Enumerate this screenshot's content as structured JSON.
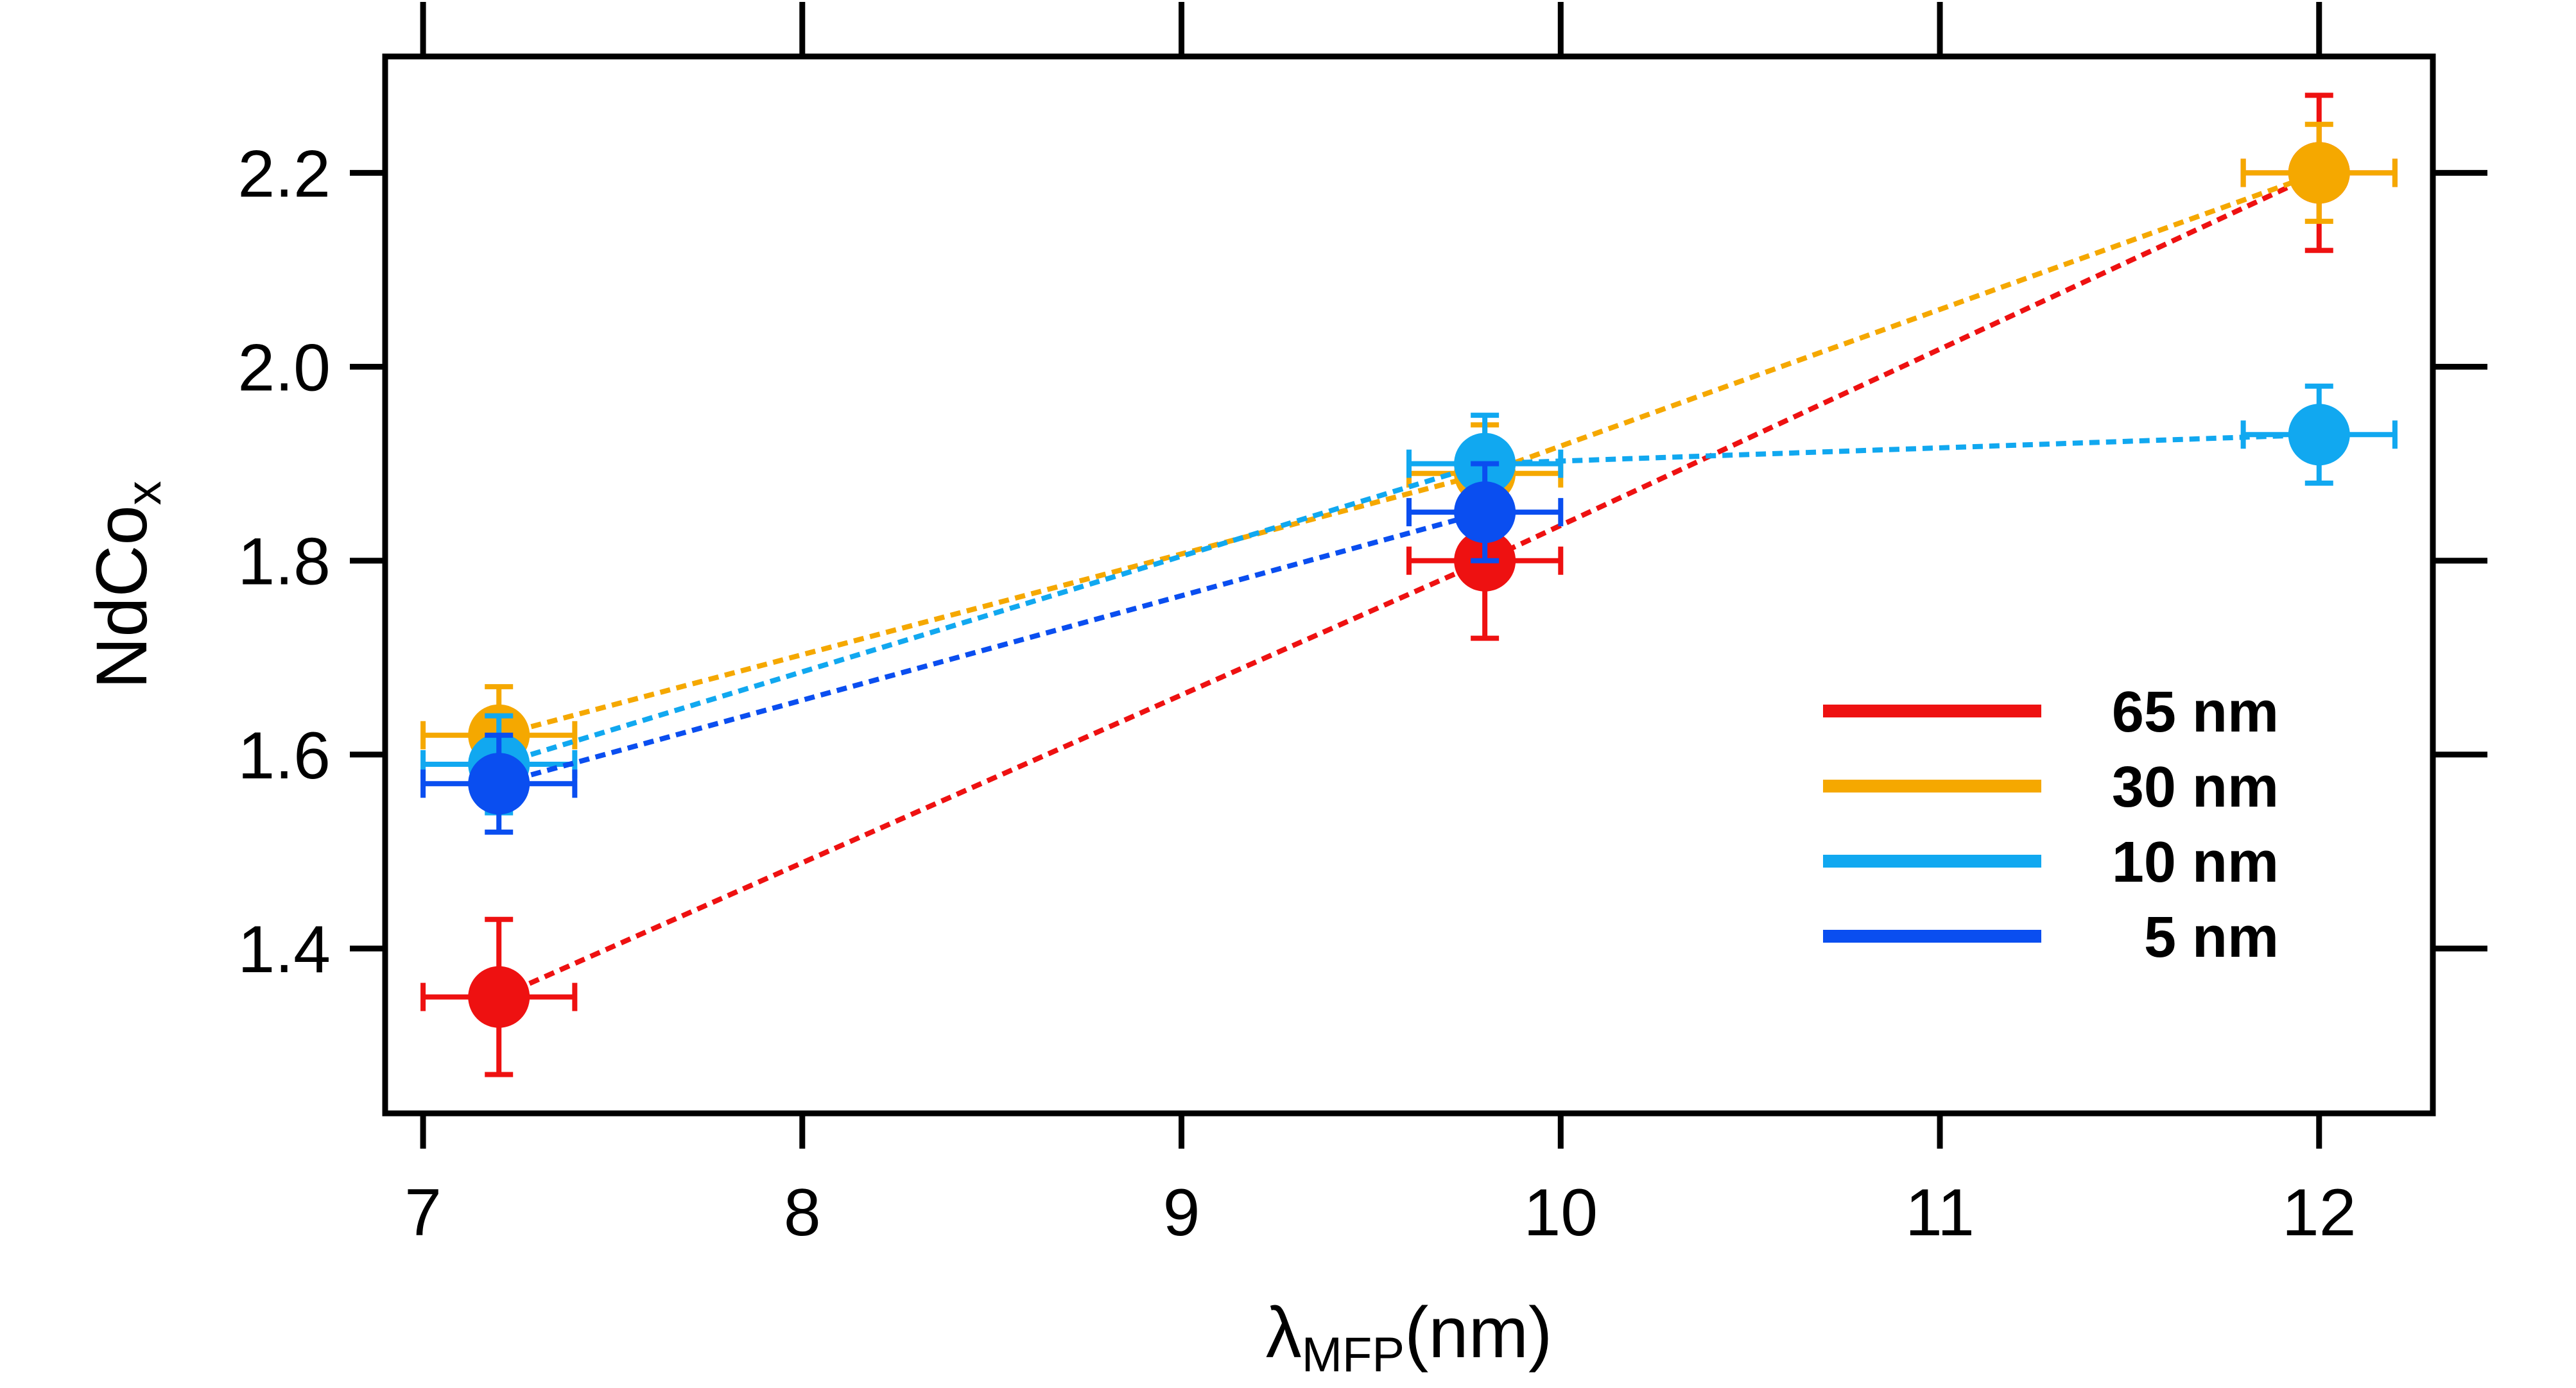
{
  "chart_data": {
    "type": "scatter",
    "title": "",
    "xlabel": {
      "main": "λ",
      "sub": "MFP",
      "suffix": "(nm)"
    },
    "ylabel": {
      "main": "NdCo",
      "sub": "x"
    },
    "xlim": [
      6.9,
      12.3
    ],
    "ylim": [
      1.23,
      2.32
    ],
    "x_ticks": [
      7,
      8,
      9,
      10,
      11,
      12
    ],
    "x_tick_labels": [
      "7",
      "8",
      "9",
      "10",
      "11",
      "12"
    ],
    "y_ticks": [
      1.4,
      1.6,
      1.8,
      2.0,
      2.2
    ],
    "y_tick_labels": [
      "1.4",
      "1.6",
      "1.8",
      "2.0",
      "2.2"
    ],
    "grid": false,
    "legend_position": "lower-right",
    "series": [
      {
        "name": "65 nm",
        "color": "#EE1111",
        "points": [
          {
            "x": 7.2,
            "y": 1.35,
            "xerr": 0.2,
            "yerr": 0.08
          },
          {
            "x": 9.8,
            "y": 1.8,
            "xerr": 0.2,
            "yerr": 0.08
          },
          {
            "x": 12.0,
            "y": 2.2,
            "xerr": 0.2,
            "yerr": 0.08
          }
        ]
      },
      {
        "name": "30 nm",
        "color": "#F5A800",
        "points": [
          {
            "x": 7.2,
            "y": 1.62,
            "xerr": 0.2,
            "yerr": 0.05
          },
          {
            "x": 9.8,
            "y": 1.89,
            "xerr": 0.2,
            "yerr": 0.05
          },
          {
            "x": 12.0,
            "y": 2.2,
            "xerr": 0.2,
            "yerr": 0.05
          }
        ]
      },
      {
        "name": "10 nm",
        "color": "#11A8F0",
        "points": [
          {
            "x": 7.2,
            "y": 1.59,
            "xerr": 0.2,
            "yerr": 0.05
          },
          {
            "x": 9.8,
            "y": 1.9,
            "xerr": 0.2,
            "yerr": 0.05
          },
          {
            "x": 12.0,
            "y": 1.93,
            "xerr": 0.2,
            "yerr": 0.05
          }
        ]
      },
      {
        "name": " 5 nm",
        "color": "#0A4EF0",
        "points": [
          {
            "x": 7.2,
            "y": 1.57,
            "xerr": 0.2,
            "yerr": 0.05
          },
          {
            "x": 9.8,
            "y": 1.85,
            "xerr": 0.2,
            "yerr": 0.05
          }
        ]
      }
    ]
  }
}
